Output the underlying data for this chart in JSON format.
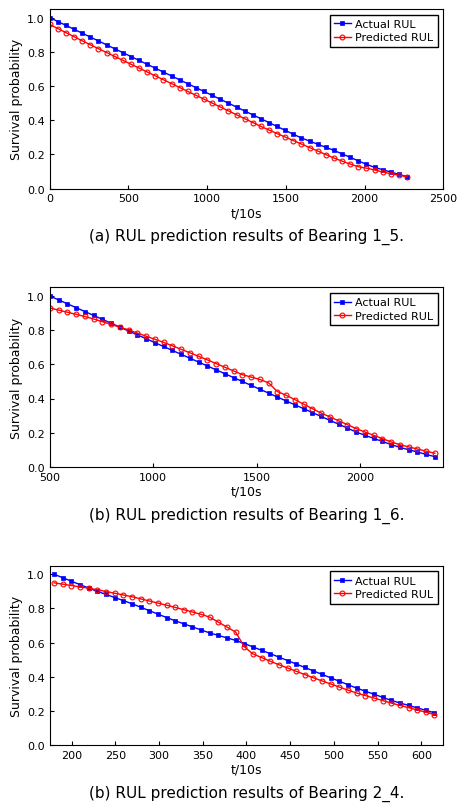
{
  "plots": [
    {
      "caption": "(a) RUL prediction results of Bearing 1_5.",
      "xlabel": "t/10s",
      "ylabel": "Survival probability",
      "xlim": [
        0,
        2500
      ],
      "ylim": [
        0,
        1.05
      ],
      "xticks": [
        0,
        500,
        1000,
        1500,
        2000,
        2500
      ],
      "yticks": [
        0,
        0.2,
        0.4,
        0.6,
        0.8,
        1.0
      ],
      "actual_x": [
        0,
        227,
        454,
        681,
        908,
        1135,
        1362,
        1589,
        1816,
        2043,
        2270
      ],
      "actual_y": [
        1.0,
        0.9,
        0.8,
        0.7,
        0.6,
        0.5,
        0.4,
        0.3,
        0.22,
        0.13,
        0.07
      ],
      "predicted_x": [
        0,
        227,
        454,
        681,
        908,
        1135,
        1362,
        1589,
        1816,
        1950,
        2043,
        2100,
        2270
      ],
      "predicted_y": [
        0.96,
        0.855,
        0.755,
        0.655,
        0.555,
        0.455,
        0.355,
        0.265,
        0.175,
        0.13,
        0.115,
        0.1,
        0.07
      ],
      "actual_color": "#0000FF",
      "predicted_color": "#FF0000"
    },
    {
      "caption": "(b) RUL prediction results of Bearing 1_6.",
      "xlabel": "t/10s",
      "ylabel": "Survival probability",
      "xlim": [
        500,
        2400
      ],
      "ylim": [
        0,
        1.05
      ],
      "xticks": [
        500,
        1000,
        1500,
        2000
      ],
      "yticks": [
        0,
        0.2,
        0.4,
        0.6,
        0.8,
        1.0
      ],
      "actual_x": [
        500,
        686,
        872,
        1058,
        1244,
        1430,
        1616,
        1802,
        1988,
        2174,
        2360
      ],
      "actual_y": [
        1.0,
        0.9,
        0.8,
        0.7,
        0.6,
        0.5,
        0.4,
        0.3,
        0.2,
        0.12,
        0.06
      ],
      "predicted_x": [
        500,
        686,
        872,
        1058,
        1244,
        1430,
        1550,
        1600,
        1650,
        1802,
        1988,
        2174,
        2360
      ],
      "predicted_y": [
        0.93,
        0.875,
        0.805,
        0.725,
        0.635,
        0.54,
        0.5,
        0.44,
        0.415,
        0.32,
        0.22,
        0.135,
        0.08
      ],
      "actual_color": "#0000FF",
      "predicted_color": "#FF0000"
    },
    {
      "caption": "(b) RUL prediction results of Bearing 2_4.",
      "xlabel": "t/10s",
      "ylabel": "Survival probability",
      "xlim": [
        175,
        625
      ],
      "ylim": [
        0,
        1.05
      ],
      "xticks": [
        200,
        250,
        300,
        350,
        400,
        450,
        500,
        550,
        600
      ],
      "yticks": [
        0,
        0.2,
        0.4,
        0.6,
        0.8,
        1.0
      ],
      "actual_x": [
        180,
        224,
        268,
        312,
        356,
        390,
        400,
        435,
        479,
        523,
        567,
        615
      ],
      "actual_y": [
        1.0,
        0.91,
        0.83,
        0.74,
        0.66,
        0.61,
        0.59,
        0.52,
        0.43,
        0.34,
        0.26,
        0.19
      ],
      "predicted_x": [
        180,
        224,
        268,
        312,
        356,
        390,
        400,
        435,
        479,
        523,
        567,
        615
      ],
      "predicted_y": [
        0.95,
        0.915,
        0.87,
        0.815,
        0.755,
        0.655,
        0.55,
        0.475,
        0.39,
        0.31,
        0.245,
        0.18
      ],
      "actual_color": "#0000FF",
      "predicted_color": "#FF0000"
    }
  ],
  "legend_actual_label": "Actual RUL",
  "legend_predicted_label": "Predicted RUL",
  "actual_marker": "s",
  "predicted_marker": "o",
  "line_width": 1.0,
  "marker_size": 3.5,
  "axis_fontsize": 9,
  "tick_fontsize": 8,
  "legend_fontsize": 8,
  "caption_fontsize": 11,
  "bg_color": "#ffffff"
}
